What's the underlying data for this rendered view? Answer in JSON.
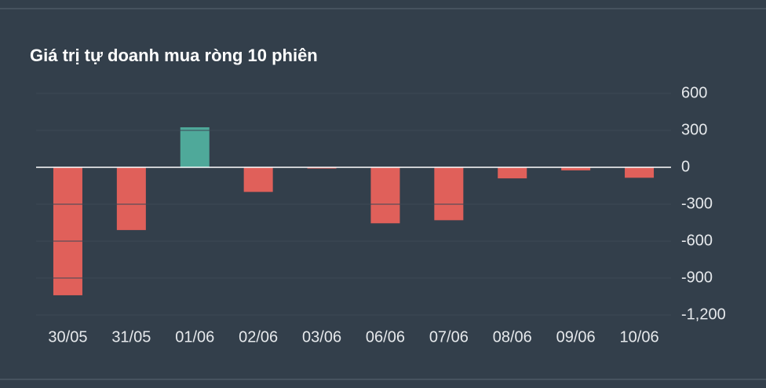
{
  "chart_data": {
    "type": "bar",
    "title": "Giá trị tự doanh mua ròng 10 phiên",
    "categories": [
      "30/05",
      "31/05",
      "01/06",
      "02/06",
      "03/06",
      "06/06",
      "07/06",
      "08/06",
      "09/06",
      "10/06"
    ],
    "values": [
      -1040,
      -510,
      325,
      -200,
      -10,
      -455,
      -430,
      -90,
      -25,
      -85
    ],
    "positive_color": "#4fa99a",
    "negative_color": "#e0605a",
    "ylim": [
      -1200,
      600
    ],
    "yticks": [
      600,
      300,
      0,
      -300,
      -600,
      -900,
      {
        "value": -1200,
        "label": "-1,200"
      }
    ],
    "grid": true
  }
}
